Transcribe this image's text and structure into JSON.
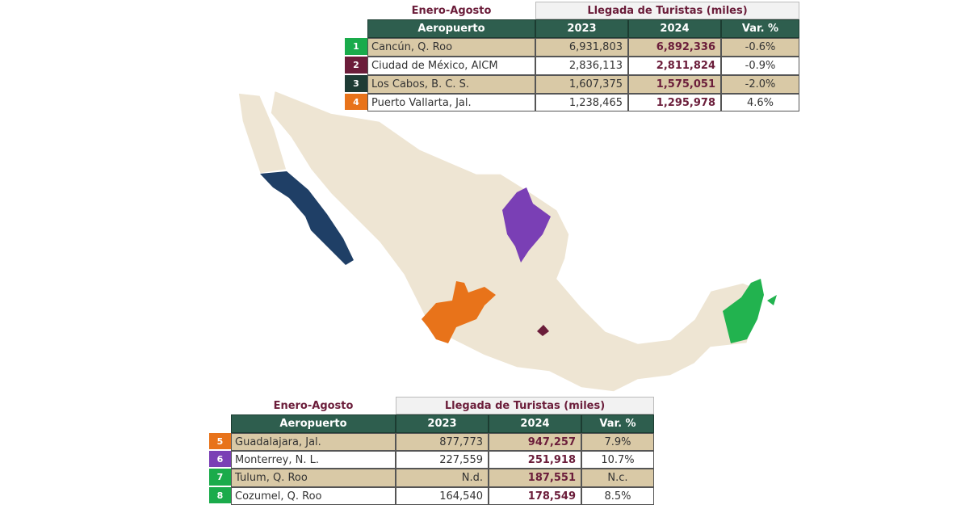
{
  "top_table": {
    "period": "Enero-Agosto",
    "group_header": "Llegada de Turistas (miles)",
    "columns": [
      "Aeropuerto",
      "2023",
      "2024",
      "Var. %"
    ],
    "rows": [
      {
        "rank": "1",
        "airport": "Cancún, Q. Roo",
        "y2023": "6,931,803",
        "y2024": "6,892,336",
        "var": "-0.6%"
      },
      {
        "rank": "2",
        "airport": "Ciudad de México, AICM",
        "y2023": "2,836,113",
        "y2024": "2,811,824",
        "var": "-0.9%"
      },
      {
        "rank": "3",
        "airport": "Los Cabos, B. C. S.",
        "y2023": "1,607,375",
        "y2024": "1,575,051",
        "var": "-2.0%"
      },
      {
        "rank": "4",
        "airport": "Puerto Vallarta, Jal.",
        "y2023": "1,238,465",
        "y2024": "1,295,978",
        "var": "4.6%"
      }
    ]
  },
  "bottom_table": {
    "period": "Enero-Agosto",
    "group_header": "Llegada de Turistas (miles)",
    "columns": [
      "Aeropuerto",
      "2023",
      "2024",
      "Var. %"
    ],
    "rows": [
      {
        "rank": "5",
        "airport": "Guadalajara, Jal.",
        "y2023": "877,773",
        "y2024": "947,257",
        "var": "7.9%"
      },
      {
        "rank": "6",
        "airport": "Monterrey, N. L.",
        "y2023": "227,559",
        "y2024": "251,918",
        "var": "10.7%"
      },
      {
        "rank": "7",
        "airport": "Tulum, Q. Roo",
        "y2023": "N.d.",
        "y2024": "187,551",
        "var": "N.c."
      },
      {
        "rank": "8",
        "airport": "Cozumel, Q. Roo",
        "y2023": "164,540",
        "y2024": "178,549",
        "var": "8.5%"
      }
    ]
  }
}
